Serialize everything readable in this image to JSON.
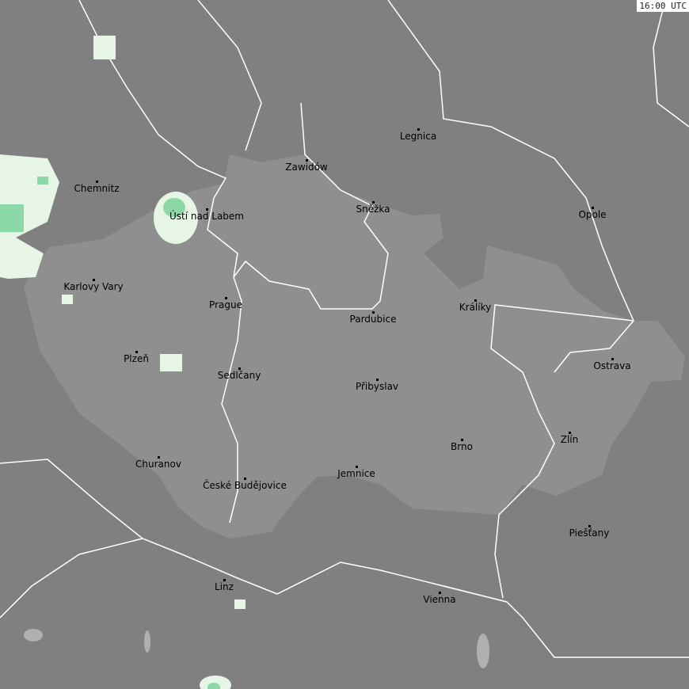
{
  "timestamp": "16:00 UTC",
  "colors": {
    "background": "#808080",
    "region": "#8f8f8f",
    "border": "#ffffff",
    "precip_light": "#e6f5e6",
    "precip_moderate": "#8cd8a6",
    "water": "#b0b0b0"
  },
  "cities": [
    {
      "name": "Legnica"
    },
    {
      "name": "Zawidów"
    },
    {
      "name": "Chemnitz"
    },
    {
      "name": "Ústí nad Labem"
    },
    {
      "name": "Sněžka"
    },
    {
      "name": "Opole"
    },
    {
      "name": "Karlovy Vary"
    },
    {
      "name": "Prague"
    },
    {
      "name": "Králíky"
    },
    {
      "name": "Pardubice"
    },
    {
      "name": "Plzeň"
    },
    {
      "name": "Ostrava"
    },
    {
      "name": "Sedlčany"
    },
    {
      "name": "Přibyslav"
    },
    {
      "name": "Zlín"
    },
    {
      "name": "Brno"
    },
    {
      "name": "Churanov"
    },
    {
      "name": "Jemnice"
    },
    {
      "name": "České Budějovice"
    },
    {
      "name": "Piešťany"
    },
    {
      "name": "Linz"
    },
    {
      "name": "Vienna"
    }
  ]
}
